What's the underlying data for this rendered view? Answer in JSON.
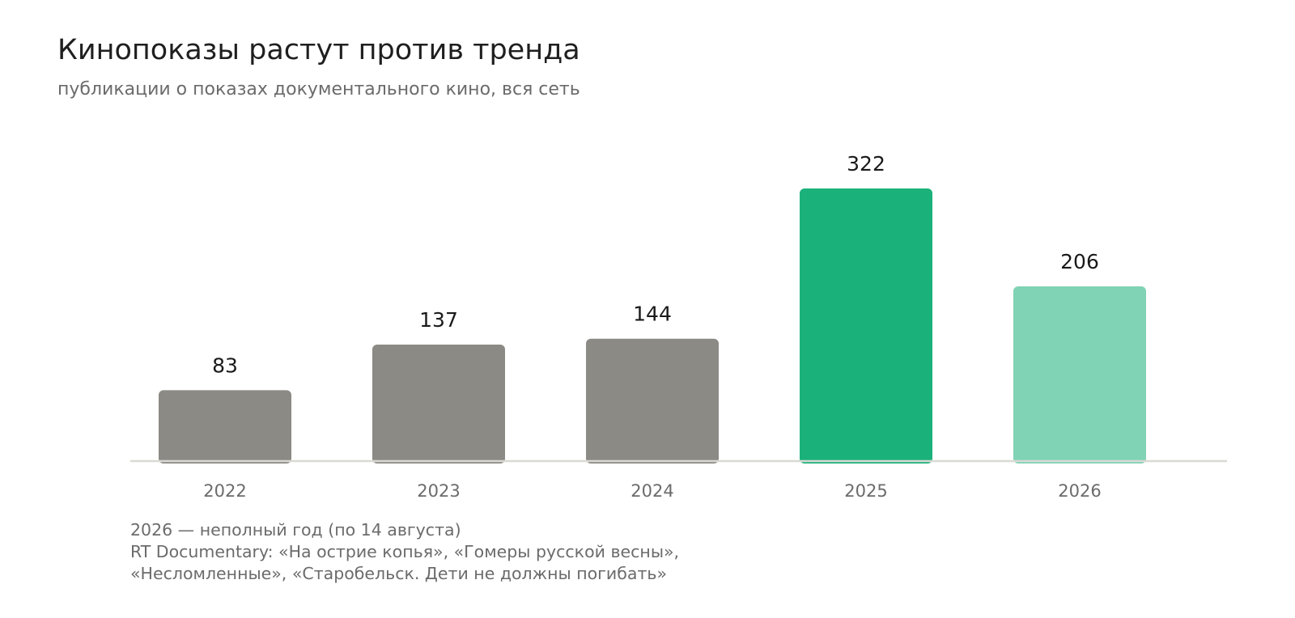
{
  "title": "Кинопоказы растут против тренда",
  "subtitle": "публикации о показах документального кино, вся сеть",
  "notes": [
    "2026 — неполный год (по 14 августа)",
    "RT Documentary: «На острие копья», «Гомеры русской весны»,",
    "«Несломленные», «Старобельск. Дети не должны погибать»"
  ],
  "chart_data": {
    "type": "bar",
    "title": "Кинопоказы растут против тренда",
    "subtitle": "публикации о показах документального кино, вся сеть",
    "categories": [
      "2022",
      "2023",
      "2024",
      "2025",
      "2026"
    ],
    "values": [
      83,
      137,
      144,
      322,
      206
    ],
    "colors": [
      "#8c8a84",
      "#8c8a84",
      "#8c8a84",
      "#1bb17a",
      "#80d3b4"
    ],
    "axis_color": "#d9d9d4",
    "label_color": "#1a1a1a",
    "tick_color": "#6b6b6b",
    "ylim": [
      0,
      322
    ],
    "grid": false,
    "legend": "none",
    "xlabel": "",
    "ylabel": ""
  }
}
